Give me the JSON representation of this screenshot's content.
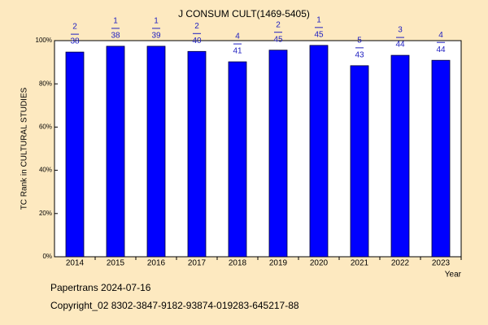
{
  "chart_data": {
    "type": "bar",
    "title": "J CONSUM CULT(1469-5405)",
    "y_label": "TC Rank in CULTURAL STUDIES",
    "x_label": "Year",
    "categories": [
      "2014",
      "2015",
      "2016",
      "2017",
      "2018",
      "2019",
      "2020",
      "2021",
      "2022",
      "2023"
    ],
    "values": [
      94.7,
      97.4,
      97.4,
      95.0,
      90.2,
      95.6,
      97.8,
      88.4,
      93.2,
      90.9
    ],
    "ranks": [
      2,
      1,
      1,
      2,
      4,
      2,
      1,
      5,
      3,
      4
    ],
    "totals": [
      38,
      38,
      39,
      40,
      41,
      45,
      45,
      43,
      44,
      44
    ],
    "color": "#0000ff",
    "ylim": [
      0,
      100
    ],
    "yticks": [
      {
        "value": 0,
        "label": "0%"
      },
      {
        "value": 20,
        "label": "20%"
      },
      {
        "value": 40,
        "label": "40%"
      },
      {
        "value": 60,
        "label": "60%"
      },
      {
        "value": 80,
        "label": "80%"
      },
      {
        "value": 100,
        "label": "100%"
      }
    ],
    "grid": false
  },
  "footer": {
    "line1": "Papertrans 2024-07-16",
    "line2": "Copyright_02 8302-3847-9182-93874-019283-645217-88"
  }
}
